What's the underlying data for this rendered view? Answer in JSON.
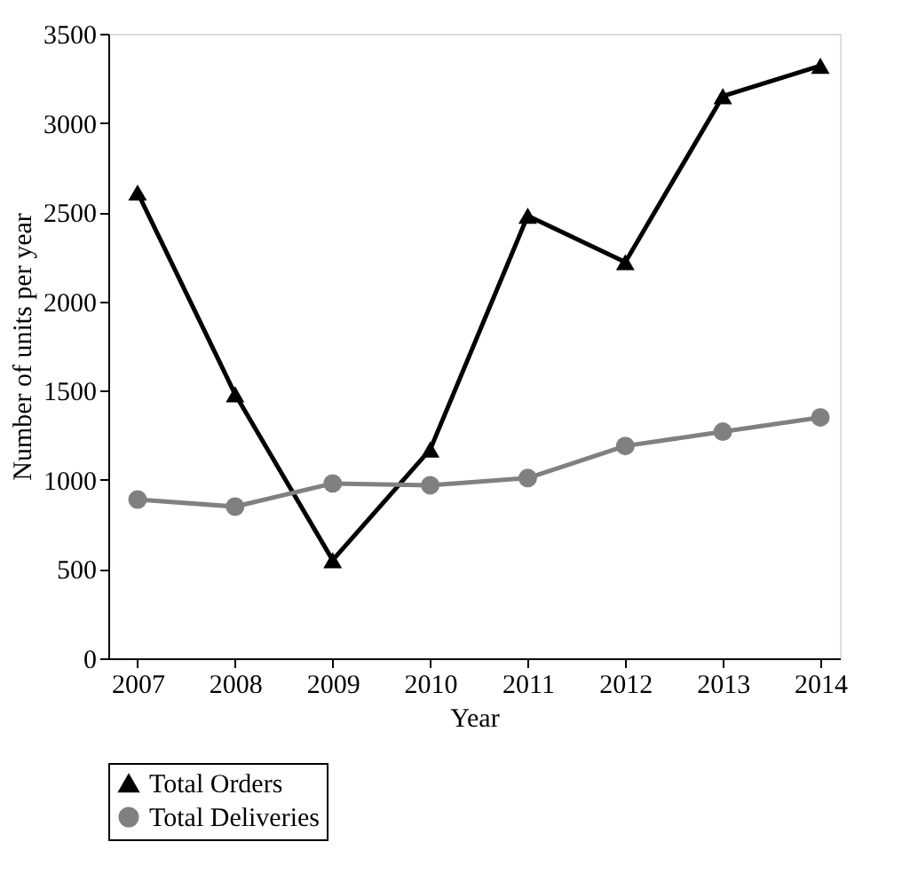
{
  "chart_data": {
    "type": "line",
    "xlabel": "Year",
    "ylabel": "Number of units per year",
    "x": [
      2007,
      2008,
      2009,
      2010,
      2011,
      2012,
      2013,
      2014
    ],
    "series": [
      {
        "name": "Total Orders",
        "color": "#000000",
        "marker": "triangle",
        "values": [
          2610,
          1480,
          550,
          1170,
          2480,
          2220,
          3150,
          3320
        ]
      },
      {
        "name": "Total Deliveries",
        "color": "#808080",
        "marker": "circle",
        "values": [
          890,
          850,
          980,
          970,
          1010,
          1190,
          1270,
          1350
        ]
      }
    ],
    "xlim": [
      2006.7,
      2014.2
    ],
    "xticks": [
      2007,
      2008,
      2009,
      2010,
      2011,
      2012,
      2013,
      2014
    ],
    "ylim": [
      0,
      3500
    ],
    "yticks": [
      0,
      500,
      1000,
      1500,
      2000,
      2500,
      3000,
      3500
    ],
    "grid": false,
    "legend": "bottom",
    "line_style": "solid"
  }
}
